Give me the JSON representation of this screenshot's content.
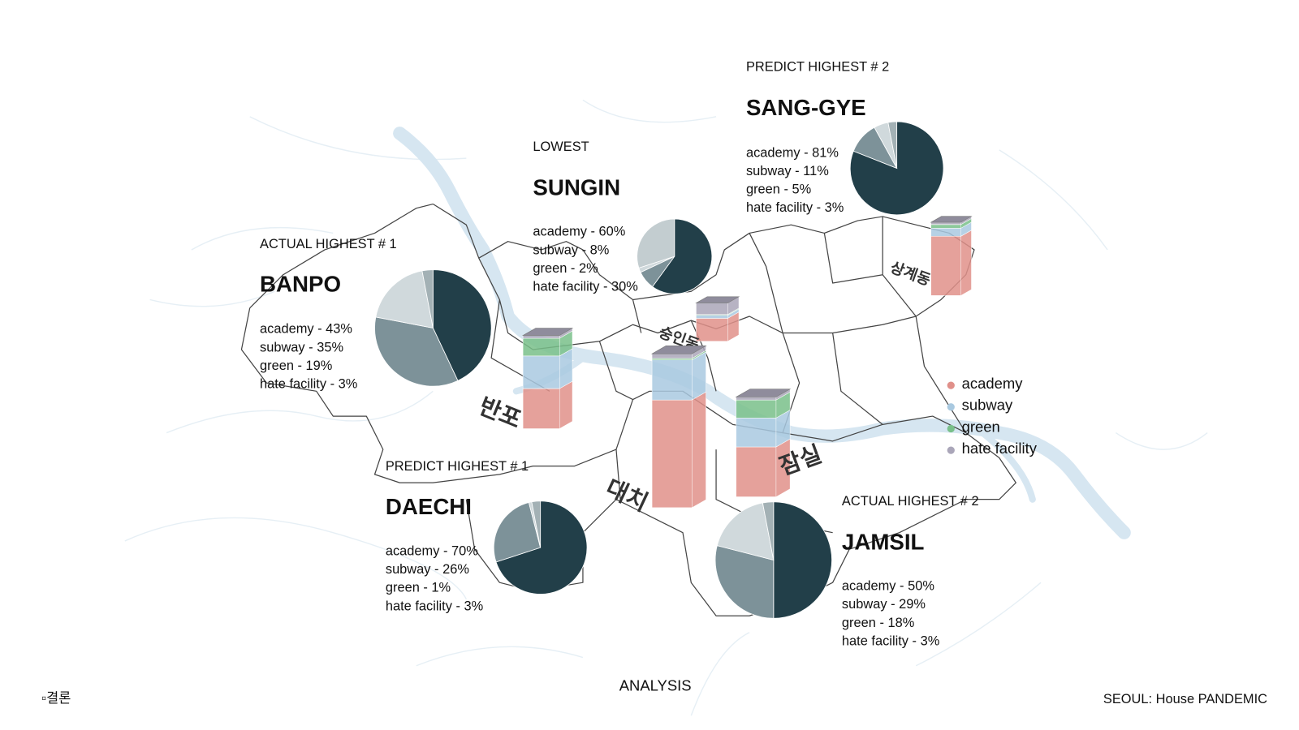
{
  "chart_data": [
    {
      "type": "pie",
      "subtitle": "ACTUAL HIGHEST # 1",
      "title": "BANPO",
      "map_label": "반포",
      "values": [
        43,
        35,
        19,
        3
      ],
      "value_labels": [
        "academy - 43%",
        "subway - 35%",
        "green - 19%",
        "hate facility - 3%"
      ],
      "colors": [
        "#223f49",
        "#7d9299",
        "#d0d9dc",
        "#a3b1b5"
      ]
    },
    {
      "type": "pie",
      "subtitle": "LOWEST",
      "title": "SUNGIN",
      "map_label": "숭인동",
      "values": [
        60,
        8,
        2,
        30
      ],
      "value_labels": [
        "academy - 60%",
        "subway - 8%",
        "green - 2%",
        "hate facility - 30%"
      ],
      "colors": [
        "#223f49",
        "#7d9299",
        "#d0d9dc",
        "#c3cdd0"
      ]
    },
    {
      "type": "pie",
      "subtitle": "PREDICT HIGHEST # 2",
      "title": "SANG-GYE",
      "map_label": "상계동",
      "values": [
        81,
        11,
        5,
        3
      ],
      "value_labels": [
        "academy - 81%",
        "subway - 11%",
        "green - 5%",
        "hate facility - 3%"
      ],
      "colors": [
        "#223f49",
        "#7d9299",
        "#d0d9dc",
        "#a3b1b5"
      ]
    },
    {
      "type": "pie",
      "subtitle": "PREDICT HIGHEST # 1",
      "title": "DAECHI",
      "map_label": "대치",
      "values": [
        70,
        26,
        1,
        3
      ],
      "value_labels": [
        "academy - 70%",
        "subway - 26%",
        "green - 1%",
        "hate facility - 3%"
      ],
      "colors": [
        "#223f49",
        "#7d9299",
        "#d0d9dc",
        "#a3b1b5"
      ]
    },
    {
      "type": "pie",
      "subtitle": "ACTUAL HIGHEST # 2",
      "title": "JAMSIL",
      "map_label": "잠실",
      "values": [
        50,
        29,
        18,
        3
      ],
      "value_labels": [
        "academy - 50%",
        "subway - 29%",
        "green - 18%",
        "hate facility - 3%"
      ],
      "colors": [
        "#223f49",
        "#7d9299",
        "#d0d9dc",
        "#a3b1b5"
      ]
    }
  ],
  "legend": {
    "items": [
      {
        "name": "academy",
        "color": "#e0908a"
      },
      {
        "name": "subway",
        "color": "#a9c9e0"
      },
      {
        "name": "green",
        "color": "#79c08a"
      },
      {
        "name": "hate facility",
        "color": "#aaa6b9"
      }
    ]
  },
  "footer": {
    "left": "▫결론",
    "center": "ANALYSIS",
    "right": "SEOUL: House PANDEMIC"
  }
}
